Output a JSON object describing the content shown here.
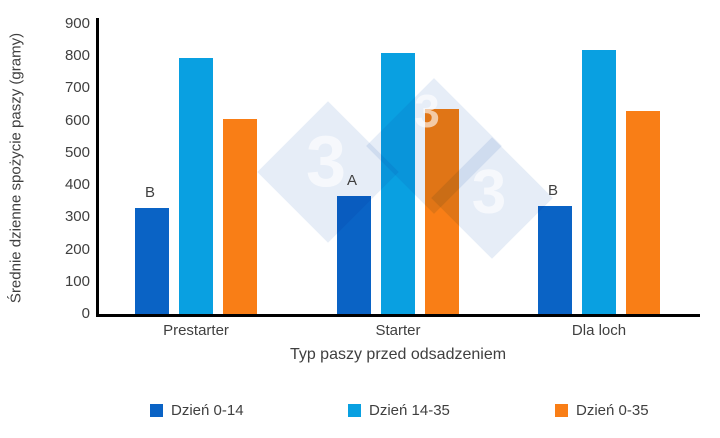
{
  "chart_data": {
    "type": "bar",
    "title": "",
    "xlabel": "Typ paszy przed odsadzeniem",
    "ylabel": "Średnie dzienne spożycie paszy (gramy)",
    "ylim": [
      0,
      900
    ],
    "ytick_step": 100,
    "ytick_labels": [
      "0",
      "100",
      "200",
      "300",
      "400",
      "500",
      "600",
      "700",
      "800",
      "900"
    ],
    "grid": false,
    "legend_position": "bottom",
    "categories": [
      "Prestarter",
      "Starter",
      "Dla loch"
    ],
    "series": [
      {
        "name": "Dzień 0-14",
        "color": "#0a63c5",
        "values": [
          330,
          365,
          335
        ]
      },
      {
        "name": "Dzień 14-35",
        "color": "#09a0e1",
        "values": [
          795,
          810,
          820
        ]
      },
      {
        "name": "Dzień 0-35",
        "color": "#f97e16",
        "values": [
          605,
          635,
          630
        ]
      }
    ],
    "annotations": [
      {
        "category_index": 0,
        "series_index": 0,
        "text": "B"
      },
      {
        "category_index": 1,
        "series_index": 0,
        "text": "A"
      },
      {
        "category_index": 2,
        "series_index": 0,
        "text": "B"
      }
    ],
    "watermark": {
      "digits": [
        "3",
        "3",
        "3"
      ],
      "diamond_color": "#e6edf7",
      "digit_color": "#ffffff"
    }
  }
}
